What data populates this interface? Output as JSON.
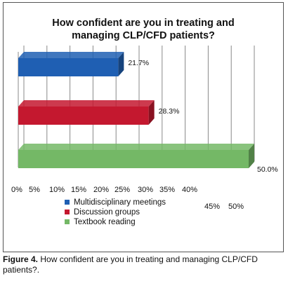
{
  "chart_data": {
    "type": "bar",
    "orientation": "horizontal",
    "title_lines": [
      "How confident are you in treating and",
      "managing CLP/CFD patients?"
    ],
    "xlim": [
      0,
      50
    ],
    "ticks": [
      "0%",
      "5%",
      "10%",
      "15%",
      "20%",
      "25%",
      "30%",
      "35%",
      "40%",
      "45%",
      "50%"
    ],
    "categories": [
      "Multidisciplinary meetings",
      "Discussion groups",
      "Textbook reading"
    ],
    "values": [
      21.7,
      28.3,
      50.0
    ],
    "value_labels": [
      "21.7%",
      "28.3%",
      "50.0%"
    ],
    "colors": [
      "#1f5fb3",
      "#c4182f",
      "#74b866"
    ],
    "grid": true,
    "legend_position": "bottom-left"
  },
  "caption": {
    "label": "Figure 4.",
    "text": " How confident are you in treating and managing CLP/CFD patients?."
  }
}
